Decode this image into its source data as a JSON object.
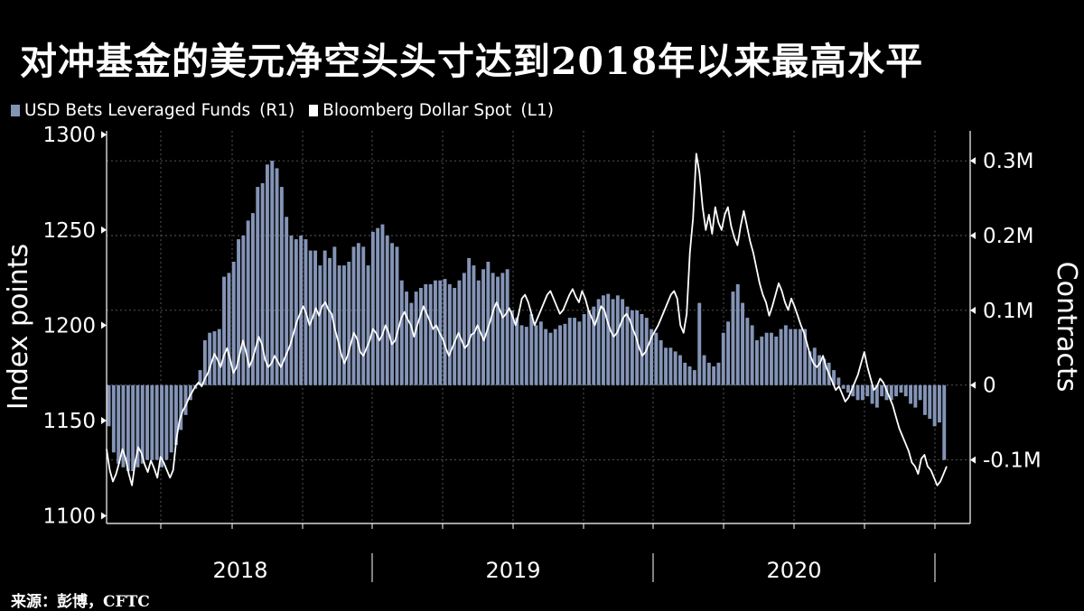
{
  "title": "对冲基金的美元净空头头寸达到2018年以来最高水平",
  "source": "来源：彭博，CFTC",
  "colors": {
    "background": "#000000",
    "bars": "#8494b6",
    "line": "#ffffff",
    "text": "#ffffff",
    "grid": "#5c5c5c"
  },
  "chart_data": {
    "type": "bar+line",
    "legend_position": "top-left",
    "grid": true,
    "x_axis": {
      "tick_labels": [
        "2018",
        "2019",
        "2020"
      ]
    },
    "y_left": {
      "label": "Index points",
      "ticks": [
        1100,
        1150,
        1200,
        1250,
        1300
      ],
      "tick_labels": [
        "1100",
        "1150",
        "1200",
        "1250",
        "1300"
      ],
      "range": [
        1096,
        1302
      ]
    },
    "y_right": {
      "label": "Contracts",
      "ticks": [
        -100000,
        0,
        100000,
        200000,
        300000
      ],
      "tick_labels": [
        "-0.1M",
        "0",
        "0.1M",
        "0.2M",
        "0.3M"
      ],
      "range": [
        -185000,
        340000
      ]
    },
    "series": [
      {
        "name": "USD Bets Leveraged Funds",
        "axis_note": "(R1)",
        "type": "bar",
        "axis": "right",
        "values": [
          -55000,
          -90000,
          -105000,
          -110000,
          -115000,
          -115000,
          -110000,
          -105000,
          -100000,
          -100000,
          -100000,
          -110000,
          -100000,
          -90000,
          -80000,
          -60000,
          -40000,
          -20000,
          -5000,
          20000,
          60000,
          70000,
          72000,
          75000,
          145000,
          150000,
          165000,
          195000,
          200000,
          220000,
          230000,
          265000,
          270000,
          295000,
          300000,
          290000,
          265000,
          225000,
          200000,
          195000,
          200000,
          195000,
          180000,
          180000,
          160000,
          180000,
          170000,
          185000,
          160000,
          160000,
          165000,
          185000,
          190000,
          185000,
          160000,
          205000,
          210000,
          215000,
          200000,
          190000,
          185000,
          140000,
          125000,
          110000,
          125000,
          130000,
          135000,
          135000,
          140000,
          140000,
          142000,
          135000,
          130000,
          140000,
          150000,
          170000,
          160000,
          140000,
          155000,
          165000,
          150000,
          145000,
          150000,
          155000,
          100000,
          90000,
          80000,
          78000,
          95000,
          80000,
          85000,
          75000,
          70000,
          75000,
          80000,
          82000,
          90000,
          90000,
          85000,
          95000,
          100000,
          105000,
          115000,
          120000,
          122000,
          115000,
          120000,
          115000,
          105000,
          100000,
          100000,
          95000,
          90000,
          75000,
          70000,
          60000,
          50000,
          50000,
          45000,
          40000,
          30000,
          25000,
          20000,
          110000,
          40000,
          30000,
          25000,
          30000,
          70000,
          85000,
          125000,
          135000,
          110000,
          90000,
          80000,
          60000,
          65000,
          70000,
          70000,
          65000,
          75000,
          80000,
          75000,
          75000,
          75000,
          75000,
          45000,
          50000,
          40000,
          35000,
          30000,
          20000,
          10000,
          -5000,
          -10000,
          -15000,
          -20000,
          -20000,
          -15000,
          -25000,
          -30000,
          -15000,
          -20000,
          -20000,
          -15000,
          -10000,
          -15000,
          -25000,
          -30000,
          -20000,
          -40000,
          -45000,
          -55000,
          -50000,
          -100000
        ]
      },
      {
        "name": "Bloomberg Dollar Spot",
        "axis_note": "(L1)",
        "type": "line",
        "axis": "left",
        "values": [
          1135,
          1124,
          1118,
          1122,
          1128,
          1135,
          1130,
          1122,
          1116,
          1128,
          1136,
          1133,
          1127,
          1123,
          1129,
          1125,
          1120,
          1131,
          1128,
          1124,
          1120,
          1124,
          1140,
          1150,
          1155,
          1158,
          1162,
          1165,
          1168,
          1170,
          1168,
          1172,
          1175,
          1180,
          1185,
          1182,
          1178,
          1184,
          1188,
          1182,
          1175,
          1178,
          1185,
          1192,
          1186,
          1178,
          1182,
          1188,
          1194,
          1190,
          1182,
          1178,
          1180,
          1184,
          1181,
          1178,
          1182,
          1186,
          1190,
          1196,
          1202,
          1206,
          1210,
          1206,
          1200,
          1204,
          1209,
          1205,
          1210,
          1212,
          1208,
          1206,
          1198,
          1192,
          1185,
          1180,
          1184,
          1190,
          1196,
          1193,
          1186,
          1184,
          1188,
          1192,
          1198,
          1196,
          1192,
          1195,
          1200,
          1196,
          1190,
          1192,
          1198,
          1204,
          1207,
          1203,
          1200,
          1194,
          1200,
          1205,
          1210,
          1206,
          1202,
          1198,
          1200,
          1196,
          1193,
          1188,
          1184,
          1188,
          1192,
          1196,
          1192,
          1188,
          1190,
          1195,
          1196,
          1200,
          1196,
          1192,
          1197,
          1202,
          1208,
          1212,
          1208,
          1204,
          1206,
          1209,
          1205,
          1200,
          1206,
          1214,
          1216,
          1212,
          1206,
          1200,
          1204,
          1208,
          1212,
          1216,
          1218,
          1214,
          1210,
          1206,
          1208,
          1212,
          1216,
          1219,
          1215,
          1212,
          1218,
          1214,
          1208,
          1204,
          1200,
          1205,
          1210,
          1208,
          1202,
          1197,
          1194,
          1196,
          1200,
          1204,
          1206,
          1203,
          1198,
          1194,
          1188,
          1184,
          1186,
          1190,
          1194,
          1197,
          1200,
          1204,
          1208,
          1212,
          1216,
          1218,
          1214,
          1200,
          1196,
          1206,
          1238,
          1256,
          1290,
          1280,
          1262,
          1250,
          1258,
          1248,
          1262,
          1254,
          1250,
          1258,
          1262,
          1252,
          1246,
          1242,
          1252,
          1260,
          1252,
          1244,
          1238,
          1230,
          1222,
          1216,
          1212,
          1205,
          1210,
          1216,
          1222,
          1218,
          1212,
          1208,
          1214,
          1210,
          1205,
          1200,
          1196,
          1190,
          1184,
          1180,
          1178,
          1180,
          1184,
          1178,
          1174,
          1170,
          1166,
          1168,
          1164,
          1160,
          1162,
          1166,
          1170,
          1174,
          1180,
          1186,
          1178,
          1172,
          1166,
          1168,
          1172,
          1170,
          1166,
          1162,
          1158,
          1152,
          1146,
          1142,
          1138,
          1134,
          1128,
          1126,
          1122,
          1130,
          1132,
          1126,
          1124,
          1120,
          1116,
          1118,
          1122,
          1126
        ]
      }
    ]
  }
}
